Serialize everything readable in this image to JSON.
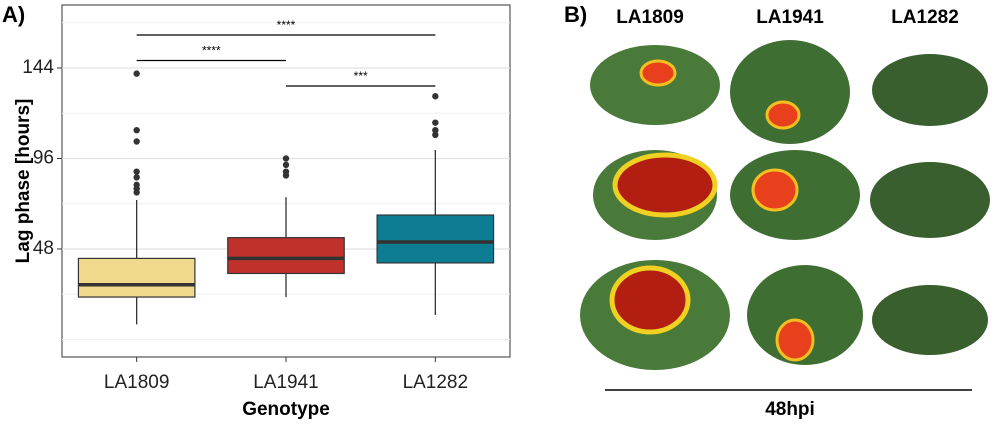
{
  "panel_labels": [
    "A)",
    "B)"
  ],
  "chart_data": {
    "type": "box",
    "x_label": "Genotype",
    "y_label": "Lag phase [hours]",
    "categories": [
      "LA1809",
      "LA1941",
      "LA1282"
    ],
    "colors": [
      "#f0d98c",
      "#c1312c",
      "#0e7d93"
    ],
    "boxes": [
      {
        "whisker_low": 8,
        "q1": 22.5,
        "median": 29,
        "q3": 43,
        "whisker_high": 74,
        "outliers": [
          141,
          111,
          105,
          89,
          86,
          82,
          80,
          78
        ]
      },
      {
        "whisker_low": 22.5,
        "q1": 35,
        "median": 43,
        "q3": 54,
        "whisker_high": 75.5,
        "outliers": [
          96,
          92.6,
          89,
          87
        ]
      },
      {
        "whisker_low": 13,
        "q1": 40.6,
        "median": 51.7,
        "q3": 66,
        "whisker_high": 100.5,
        "outliers": [
          129,
          115,
          111,
          108.5
        ]
      }
    ],
    "ylim": [
      -9.3,
      177.4
    ],
    "yticks": [
      48,
      96,
      144
    ],
    "yminor": [
      0,
      24,
      72,
      120,
      168
    ],
    "grid": true,
    "annotations": [
      {
        "text": "****",
        "between": [
          0,
          2
        ]
      },
      {
        "text": "****",
        "between": [
          0,
          1
        ]
      },
      {
        "text": "***",
        "between": [
          1,
          2
        ]
      }
    ]
  },
  "panel_b": {
    "columns": [
      "LA1809",
      "LA1941",
      "LA1282"
    ],
    "timepoint": "48hpi"
  }
}
